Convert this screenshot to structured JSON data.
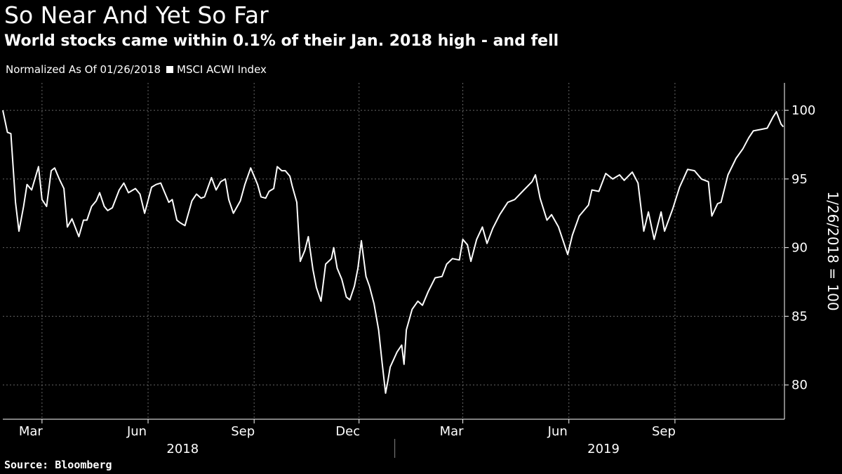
{
  "header": {
    "title": "So Near And Yet So Far",
    "subtitle": "World stocks came within 0.1% of their Jan. 2018 high - and fell"
  },
  "legend": {
    "note": "Normalized As Of 01/26/2018",
    "series_label": "MSCI ACWI Index"
  },
  "footer": {
    "source": "Source: Bloomberg"
  },
  "colors": {
    "background": "#000000",
    "line": "#ffffff",
    "grid": "#666666"
  },
  "chart_data": {
    "type": "line",
    "title": "So Near And Yet So Far",
    "subtitle": "World stocks came within 0.1% of their Jan. 2018 high - and fell",
    "ylabel": "1/26/2018 = 100",
    "ylim": [
      77.5,
      102
    ],
    "yticks": [
      80,
      85,
      90,
      95,
      100
    ],
    "xlim": [
      "2018-01-26",
      "2019-12-05"
    ],
    "month_ticks": [
      {
        "label": "Mar",
        "date": "2018-03-01"
      },
      {
        "label": "Jun",
        "date": "2018-06-01"
      },
      {
        "label": "Sep",
        "date": "2018-09-01"
      },
      {
        "label": "Dec",
        "date": "2018-12-01"
      },
      {
        "label": "Mar",
        "date": "2019-03-01"
      },
      {
        "label": "Jun",
        "date": "2019-06-01"
      },
      {
        "label": "Sep",
        "date": "2019-09-01"
      }
    ],
    "year_labels": [
      {
        "label": "2018",
        "date": "2018-07-01"
      },
      {
        "label": "2019",
        "date": "2019-07-01"
      }
    ],
    "year_divider": "2019-01-01",
    "grid": true,
    "series": [
      {
        "name": "MSCI ACWI Index",
        "points": [
          [
            "2018-01-26",
            100.0
          ],
          [
            "2018-01-30",
            98.4
          ],
          [
            "2018-02-02",
            98.3
          ],
          [
            "2018-02-06",
            93.3
          ],
          [
            "2018-02-09",
            91.2
          ],
          [
            "2018-02-13",
            93.0
          ],
          [
            "2018-02-16",
            94.6
          ],
          [
            "2018-02-20",
            94.2
          ],
          [
            "2018-02-26",
            95.9
          ],
          [
            "2018-03-01",
            93.5
          ],
          [
            "2018-03-05",
            93.0
          ],
          [
            "2018-03-09",
            95.6
          ],
          [
            "2018-03-12",
            95.8
          ],
          [
            "2018-03-16",
            95.0
          ],
          [
            "2018-03-20",
            94.3
          ],
          [
            "2018-03-23",
            91.5
          ],
          [
            "2018-03-27",
            92.1
          ],
          [
            "2018-04-02",
            90.8
          ],
          [
            "2018-04-06",
            92.0
          ],
          [
            "2018-04-09",
            92.0
          ],
          [
            "2018-04-13",
            93.0
          ],
          [
            "2018-04-17",
            93.4
          ],
          [
            "2018-04-20",
            94.0
          ],
          [
            "2018-04-24",
            93.0
          ],
          [
            "2018-04-27",
            92.7
          ],
          [
            "2018-05-01",
            92.9
          ],
          [
            "2018-05-07",
            94.2
          ],
          [
            "2018-05-11",
            94.7
          ],
          [
            "2018-05-15",
            94.0
          ],
          [
            "2018-05-21",
            94.3
          ],
          [
            "2018-05-25",
            93.9
          ],
          [
            "2018-05-29",
            92.5
          ],
          [
            "2018-06-04",
            94.4
          ],
          [
            "2018-06-08",
            94.6
          ],
          [
            "2018-06-12",
            94.7
          ],
          [
            "2018-06-15",
            94.1
          ],
          [
            "2018-06-19",
            93.3
          ],
          [
            "2018-06-22",
            93.5
          ],
          [
            "2018-06-26",
            92.0
          ],
          [
            "2018-06-29",
            91.8
          ],
          [
            "2018-07-03",
            91.6
          ],
          [
            "2018-07-09",
            93.4
          ],
          [
            "2018-07-13",
            93.9
          ],
          [
            "2018-07-17",
            93.6
          ],
          [
            "2018-07-20",
            93.7
          ],
          [
            "2018-07-26",
            95.1
          ],
          [
            "2018-07-30",
            94.2
          ],
          [
            "2018-08-03",
            94.8
          ],
          [
            "2018-08-07",
            95.0
          ],
          [
            "2018-08-10",
            93.5
          ],
          [
            "2018-08-14",
            92.5
          ],
          [
            "2018-08-20",
            93.4
          ],
          [
            "2018-08-24",
            94.6
          ],
          [
            "2018-08-29",
            95.8
          ],
          [
            "2018-09-04",
            94.6
          ],
          [
            "2018-09-07",
            93.7
          ],
          [
            "2018-09-11",
            93.6
          ],
          [
            "2018-09-14",
            94.1
          ],
          [
            "2018-09-18",
            94.3
          ],
          [
            "2018-09-21",
            95.9
          ],
          [
            "2018-09-25",
            95.6
          ],
          [
            "2018-09-28",
            95.6
          ],
          [
            "2018-10-02",
            95.2
          ],
          [
            "2018-10-04",
            94.5
          ],
          [
            "2018-10-08",
            93.3
          ],
          [
            "2018-10-11",
            89.0
          ],
          [
            "2018-10-15",
            89.8
          ],
          [
            "2018-10-18",
            90.8
          ],
          [
            "2018-10-22",
            88.4
          ],
          [
            "2018-10-25",
            87.1
          ],
          [
            "2018-10-29",
            86.1
          ],
          [
            "2018-11-02",
            88.8
          ],
          [
            "2018-11-07",
            89.2
          ],
          [
            "2018-11-09",
            90.0
          ],
          [
            "2018-11-12",
            88.5
          ],
          [
            "2018-11-16",
            87.7
          ],
          [
            "2018-11-20",
            86.4
          ],
          [
            "2018-11-23",
            86.2
          ],
          [
            "2018-11-27",
            87.2
          ],
          [
            "2018-11-30",
            88.5
          ],
          [
            "2018-12-03",
            90.5
          ],
          [
            "2018-12-07",
            87.9
          ],
          [
            "2018-12-10",
            87.2
          ],
          [
            "2018-12-14",
            85.9
          ],
          [
            "2018-12-18",
            84.0
          ],
          [
            "2018-12-21",
            81.6
          ],
          [
            "2018-12-24",
            79.4
          ],
          [
            "2018-12-26",
            80.3
          ],
          [
            "2018-12-28",
            81.3
          ],
          [
            "2019-01-03",
            82.4
          ],
          [
            "2019-01-07",
            82.9
          ],
          [
            "2019-01-09",
            81.5
          ],
          [
            "2019-01-11",
            84.0
          ],
          [
            "2019-01-16",
            85.5
          ],
          [
            "2019-01-21",
            86.1
          ],
          [
            "2019-01-25",
            85.8
          ],
          [
            "2019-01-30",
            86.8
          ],
          [
            "2019-02-05",
            87.8
          ],
          [
            "2019-02-11",
            87.9
          ],
          [
            "2019-02-15",
            88.8
          ],
          [
            "2019-02-20",
            89.2
          ],
          [
            "2019-02-26",
            89.1
          ],
          [
            "2019-03-01",
            90.6
          ],
          [
            "2019-03-05",
            90.2
          ],
          [
            "2019-03-08",
            89.0
          ],
          [
            "2019-03-13",
            90.6
          ],
          [
            "2019-03-18",
            91.5
          ],
          [
            "2019-03-22",
            90.3
          ],
          [
            "2019-03-27",
            91.4
          ],
          [
            "2019-04-02",
            92.4
          ],
          [
            "2019-04-09",
            93.3
          ],
          [
            "2019-04-15",
            93.5
          ],
          [
            "2019-04-23",
            94.2
          ],
          [
            "2019-04-30",
            94.8
          ],
          [
            "2019-05-03",
            95.3
          ],
          [
            "2019-05-07",
            93.6
          ],
          [
            "2019-05-13",
            92.0
          ],
          [
            "2019-05-17",
            92.4
          ],
          [
            "2019-05-23",
            91.5
          ],
          [
            "2019-05-31",
            89.5
          ],
          [
            "2019-06-04",
            90.9
          ],
          [
            "2019-06-10",
            92.3
          ],
          [
            "2019-06-18",
            93.1
          ],
          [
            "2019-06-21",
            94.2
          ],
          [
            "2019-06-27",
            94.1
          ],
          [
            "2019-07-03",
            95.4
          ],
          [
            "2019-07-09",
            95.0
          ],
          [
            "2019-07-15",
            95.3
          ],
          [
            "2019-07-19",
            94.9
          ],
          [
            "2019-07-26",
            95.5
          ],
          [
            "2019-07-31",
            94.7
          ],
          [
            "2019-08-05",
            91.2
          ],
          [
            "2019-08-09",
            92.6
          ],
          [
            "2019-08-14",
            90.6
          ],
          [
            "2019-08-20",
            92.6
          ],
          [
            "2019-08-23",
            91.2
          ],
          [
            "2019-08-30",
            92.8
          ],
          [
            "2019-09-05",
            94.4
          ],
          [
            "2019-09-12",
            95.7
          ],
          [
            "2019-09-18",
            95.6
          ],
          [
            "2019-09-24",
            95.0
          ],
          [
            "2019-09-30",
            94.8
          ],
          [
            "2019-10-03",
            92.3
          ],
          [
            "2019-10-08",
            93.2
          ],
          [
            "2019-10-11",
            93.3
          ],
          [
            "2019-10-17",
            95.3
          ],
          [
            "2019-10-24",
            96.5
          ],
          [
            "2019-10-30",
            97.2
          ],
          [
            "2019-11-04",
            98.0
          ],
          [
            "2019-11-08",
            98.5
          ],
          [
            "2019-11-14",
            98.6
          ],
          [
            "2019-11-20",
            98.7
          ],
          [
            "2019-11-25",
            99.5
          ],
          [
            "2019-11-28",
            99.9
          ],
          [
            "2019-12-02",
            99.0
          ],
          [
            "2019-12-04",
            98.8
          ]
        ]
      }
    ]
  }
}
